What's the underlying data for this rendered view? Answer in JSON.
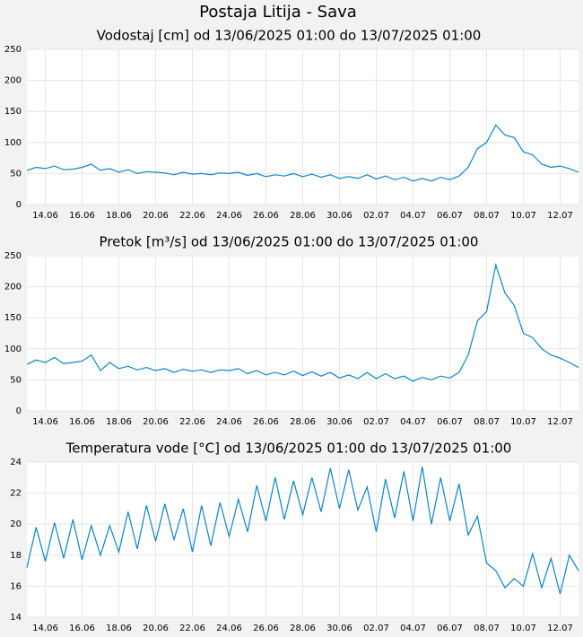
{
  "title": "Postaja Litija - Sava",
  "chart_data": [
    {
      "type": "line",
      "title": "Vodostaj [cm] od 13/06/2025 01:00 do 13/07/2025 01:00",
      "categories": [
        null,
        null,
        "14.06",
        null,
        null,
        null,
        "16.06",
        null,
        null,
        null,
        "18.06",
        null,
        null,
        null,
        "20.06",
        null,
        null,
        null,
        "22.06",
        null,
        null,
        null,
        "24.06",
        null,
        null,
        null,
        "26.06",
        null,
        null,
        null,
        "28.06",
        null,
        null,
        null,
        "30.06",
        null,
        null,
        null,
        "02.07",
        null,
        null,
        null,
        "04.07",
        null,
        null,
        null,
        "06.07",
        null,
        null,
        null,
        "08.07",
        null,
        null,
        null,
        "10.07",
        null,
        null,
        null,
        "12.07",
        null,
        null
      ],
      "values": [
        55,
        60,
        58,
        62,
        56,
        57,
        60,
        65,
        55,
        58,
        52,
        56,
        50,
        53,
        52,
        51,
        48,
        52,
        49,
        50,
        48,
        51,
        50,
        52,
        47,
        50,
        45,
        48,
        46,
        50,
        45,
        49,
        44,
        48,
        42,
        45,
        42,
        48,
        41,
        46,
        40,
        44,
        38,
        42,
        38,
        44,
        40,
        46,
        60,
        90,
        100,
        128,
        112,
        108,
        85,
        80,
        65,
        60,
        62,
        58,
        52
      ],
      "color": "#0a84c8",
      "ylim": [
        0,
        250
      ],
      "yticks": [
        0,
        50,
        100,
        150,
        200,
        250
      ],
      "grid": true
    },
    {
      "type": "line",
      "title": "Pretok [m³/s] od 13/06/2025 01:00 do 13/07/2025 01:00",
      "categories": [
        null,
        null,
        "14.06",
        null,
        null,
        null,
        "16.06",
        null,
        null,
        null,
        "18.06",
        null,
        null,
        null,
        "20.06",
        null,
        null,
        null,
        "22.06",
        null,
        null,
        null,
        "24.06",
        null,
        null,
        null,
        "26.06",
        null,
        null,
        null,
        "28.06",
        null,
        null,
        null,
        "30.06",
        null,
        null,
        null,
        "02.07",
        null,
        null,
        null,
        "04.07",
        null,
        null,
        null,
        "06.07",
        null,
        null,
        null,
        "08.07",
        null,
        null,
        null,
        "10.07",
        null,
        null,
        null,
        "12.07",
        null,
        null
      ],
      "values": [
        75,
        82,
        78,
        86,
        76,
        78,
        80,
        90,
        65,
        78,
        68,
        72,
        66,
        70,
        65,
        68,
        62,
        67,
        64,
        66,
        62,
        66,
        65,
        68,
        60,
        65,
        58,
        62,
        58,
        64,
        57,
        63,
        56,
        62,
        53,
        58,
        52,
        62,
        52,
        60,
        52,
        56,
        48,
        54,
        50,
        56,
        53,
        62,
        90,
        145,
        160,
        235,
        190,
        170,
        125,
        118,
        100,
        90,
        85,
        78,
        70
      ],
      "color": "#0a84c8",
      "ylim": [
        0,
        250
      ],
      "yticks": [
        0,
        50,
        100,
        150,
        200,
        250
      ],
      "grid": true
    },
    {
      "type": "line",
      "title": "Temperatura vode [°C] od 13/06/2025 01:00 do 13/07/2025 01:00",
      "categories": [
        null,
        null,
        "14.06",
        null,
        null,
        null,
        "16.06",
        null,
        null,
        null,
        "18.06",
        null,
        null,
        null,
        "20.06",
        null,
        null,
        null,
        "22.06",
        null,
        null,
        null,
        "24.06",
        null,
        null,
        null,
        "26.06",
        null,
        null,
        null,
        "28.06",
        null,
        null,
        null,
        "30.06",
        null,
        null,
        null,
        "02.07",
        null,
        null,
        null,
        "04.07",
        null,
        null,
        null,
        "06.07",
        null,
        null,
        null,
        "08.07",
        null,
        null,
        null,
        "10.07",
        null,
        null,
        null,
        "12.07",
        null,
        null
      ],
      "values": [
        17.2,
        19.8,
        17.6,
        20.1,
        17.8,
        20.3,
        17.7,
        19.9,
        18.0,
        19.9,
        18.2,
        20.8,
        18.4,
        21.2,
        18.9,
        21.3,
        19.0,
        21.0,
        18.2,
        21.2,
        18.6,
        21.4,
        19.2,
        21.6,
        19.5,
        22.5,
        20.2,
        23.0,
        20.3,
        22.8,
        20.6,
        23.0,
        20.8,
        23.6,
        21.0,
        23.5,
        20.9,
        22.4,
        19.5,
        22.9,
        20.4,
        23.4,
        20.2,
        23.7,
        20.0,
        23.0,
        20.2,
        22.6,
        19.3,
        20.5,
        17.5,
        17.0,
        15.9,
        16.5,
        16.0,
        18.1,
        15.9,
        17.8,
        15.5,
        18.0,
        17.0
      ],
      "color": "#0a84c8",
      "ylim": [
        14,
        24
      ],
      "yticks": [
        14,
        16,
        18,
        20,
        22,
        24
      ],
      "grid": true
    }
  ]
}
